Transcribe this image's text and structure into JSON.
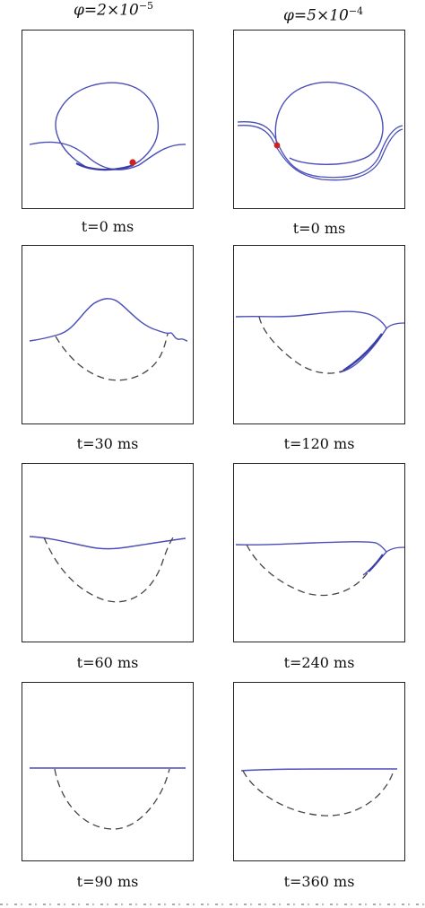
{
  "headers": {
    "left": {
      "prefix": "φ=2×10",
      "exp": "−5"
    },
    "right": {
      "prefix": "φ=5×10",
      "exp": "−4"
    }
  },
  "captions": {
    "r1_left": "t=0 ms",
    "r1_right": "t=0 ms",
    "r2_left": "t=30 ms",
    "r2_right": "t=120 ms",
    "r3_left": "t=60 ms",
    "r3_right": "t=240 ms",
    "r4_left": "t=90 ms",
    "r4_right": "t=360 ms"
  },
  "colors": {
    "interface": "#4a4fb8",
    "dashed": "#444444",
    "marker": "#cc2222"
  }
}
